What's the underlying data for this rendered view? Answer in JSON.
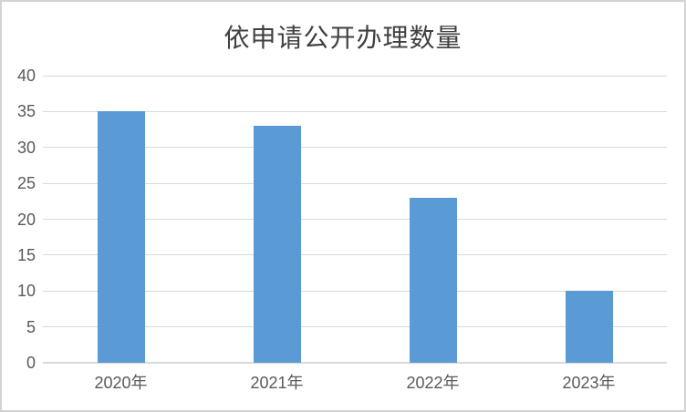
{
  "frame": {
    "border_color": "#d3d3d3",
    "background": "#ffffff"
  },
  "chart_data": {
    "type": "bar",
    "title": "依申请公开办理数量",
    "categories": [
      "2020年",
      "2021年",
      "2022年",
      "2023年"
    ],
    "values": [
      35,
      33,
      23,
      10
    ],
    "xlabel": "",
    "ylabel": "",
    "ylim": [
      0,
      40
    ],
    "yticks": [
      0,
      5,
      10,
      15,
      20,
      25,
      30,
      35,
      40
    ],
    "grid": true,
    "legend": false,
    "bar_color": "#5b9bd5",
    "gridline_color": "#d9d9d9",
    "axis_line_color": "#d9d9d9",
    "tick_label_color": "#595959",
    "title_color": "#404040"
  }
}
